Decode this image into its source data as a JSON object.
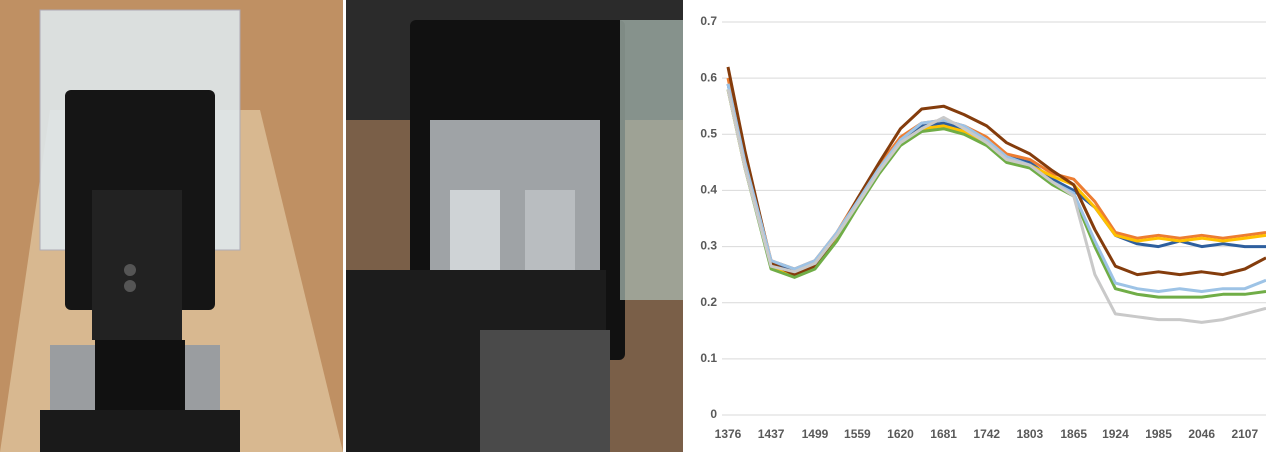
{
  "chart_data": {
    "type": "line",
    "x": [
      1376,
      1400,
      1437,
      1470,
      1499,
      1530,
      1559,
      1590,
      1620,
      1650,
      1681,
      1710,
      1742,
      1770,
      1803,
      1835,
      1865,
      1895,
      1924,
      1955,
      1985,
      2015,
      2046,
      2076,
      2107,
      2137
    ],
    "xlim": [
      1376,
      2137
    ],
    "xticks": [
      1376,
      1437,
      1499,
      1559,
      1620,
      1681,
      1742,
      1803,
      1865,
      1924,
      1985,
      2046,
      2107
    ],
    "ylim": [
      0,
      0.7
    ],
    "yticks": [
      0,
      0.1,
      0.2,
      0.3,
      0.4,
      0.5,
      0.6,
      0.7
    ],
    "grid": true,
    "series": [
      {
        "color": "#2e5f9e",
        "values": [
          0.59,
          0.45,
          0.27,
          0.255,
          0.27,
          0.32,
          0.38,
          0.44,
          0.49,
          0.515,
          0.52,
          0.51,
          0.49,
          0.46,
          0.45,
          0.42,
          0.4,
          0.37,
          0.32,
          0.305,
          0.3,
          0.31,
          0.3,
          0.305,
          0.3,
          0.3
        ]
      },
      {
        "color": "#ed7d31",
        "values": [
          0.6,
          0.46,
          0.275,
          0.26,
          0.275,
          0.325,
          0.385,
          0.445,
          0.495,
          0.52,
          0.525,
          0.515,
          0.495,
          0.465,
          0.455,
          0.43,
          0.42,
          0.38,
          0.325,
          0.315,
          0.32,
          0.315,
          0.32,
          0.315,
          0.32,
          0.325
        ]
      },
      {
        "color": "#ffc000",
        "values": [
          0.58,
          0.44,
          0.265,
          0.25,
          0.265,
          0.315,
          0.375,
          0.435,
          0.485,
          0.51,
          0.515,
          0.505,
          0.485,
          0.455,
          0.445,
          0.425,
          0.41,
          0.37,
          0.32,
          0.31,
          0.315,
          0.31,
          0.315,
          0.31,
          0.315,
          0.32
        ]
      },
      {
        "color": "#843c0c",
        "values": [
          0.62,
          0.47,
          0.27,
          0.25,
          0.265,
          0.32,
          0.385,
          0.45,
          0.51,
          0.545,
          0.55,
          0.535,
          0.515,
          0.485,
          0.465,
          0.435,
          0.41,
          0.33,
          0.265,
          0.25,
          0.255,
          0.25,
          0.255,
          0.25,
          0.26,
          0.28
        ]
      },
      {
        "color": "#70ad47",
        "values": [
          0.58,
          0.44,
          0.26,
          0.245,
          0.26,
          0.31,
          0.37,
          0.43,
          0.48,
          0.505,
          0.51,
          0.5,
          0.48,
          0.45,
          0.44,
          0.41,
          0.39,
          0.3,
          0.225,
          0.215,
          0.21,
          0.21,
          0.21,
          0.215,
          0.215,
          0.22
        ]
      },
      {
        "color": "#9dc3e6",
        "values": [
          0.59,
          0.45,
          0.275,
          0.26,
          0.275,
          0.325,
          0.38,
          0.44,
          0.49,
          0.52,
          0.525,
          0.515,
          0.49,
          0.46,
          0.445,
          0.415,
          0.395,
          0.31,
          0.235,
          0.225,
          0.22,
          0.225,
          0.22,
          0.225,
          0.225,
          0.24
        ]
      },
      {
        "color": "#c9c9c9",
        "values": [
          0.58,
          0.44,
          0.265,
          0.255,
          0.27,
          0.32,
          0.375,
          0.435,
          0.485,
          0.51,
          0.53,
          0.51,
          0.485,
          0.455,
          0.445,
          0.415,
          0.39,
          0.25,
          0.18,
          0.175,
          0.17,
          0.17,
          0.165,
          0.17,
          0.18,
          0.19
        ]
      }
    ]
  }
}
